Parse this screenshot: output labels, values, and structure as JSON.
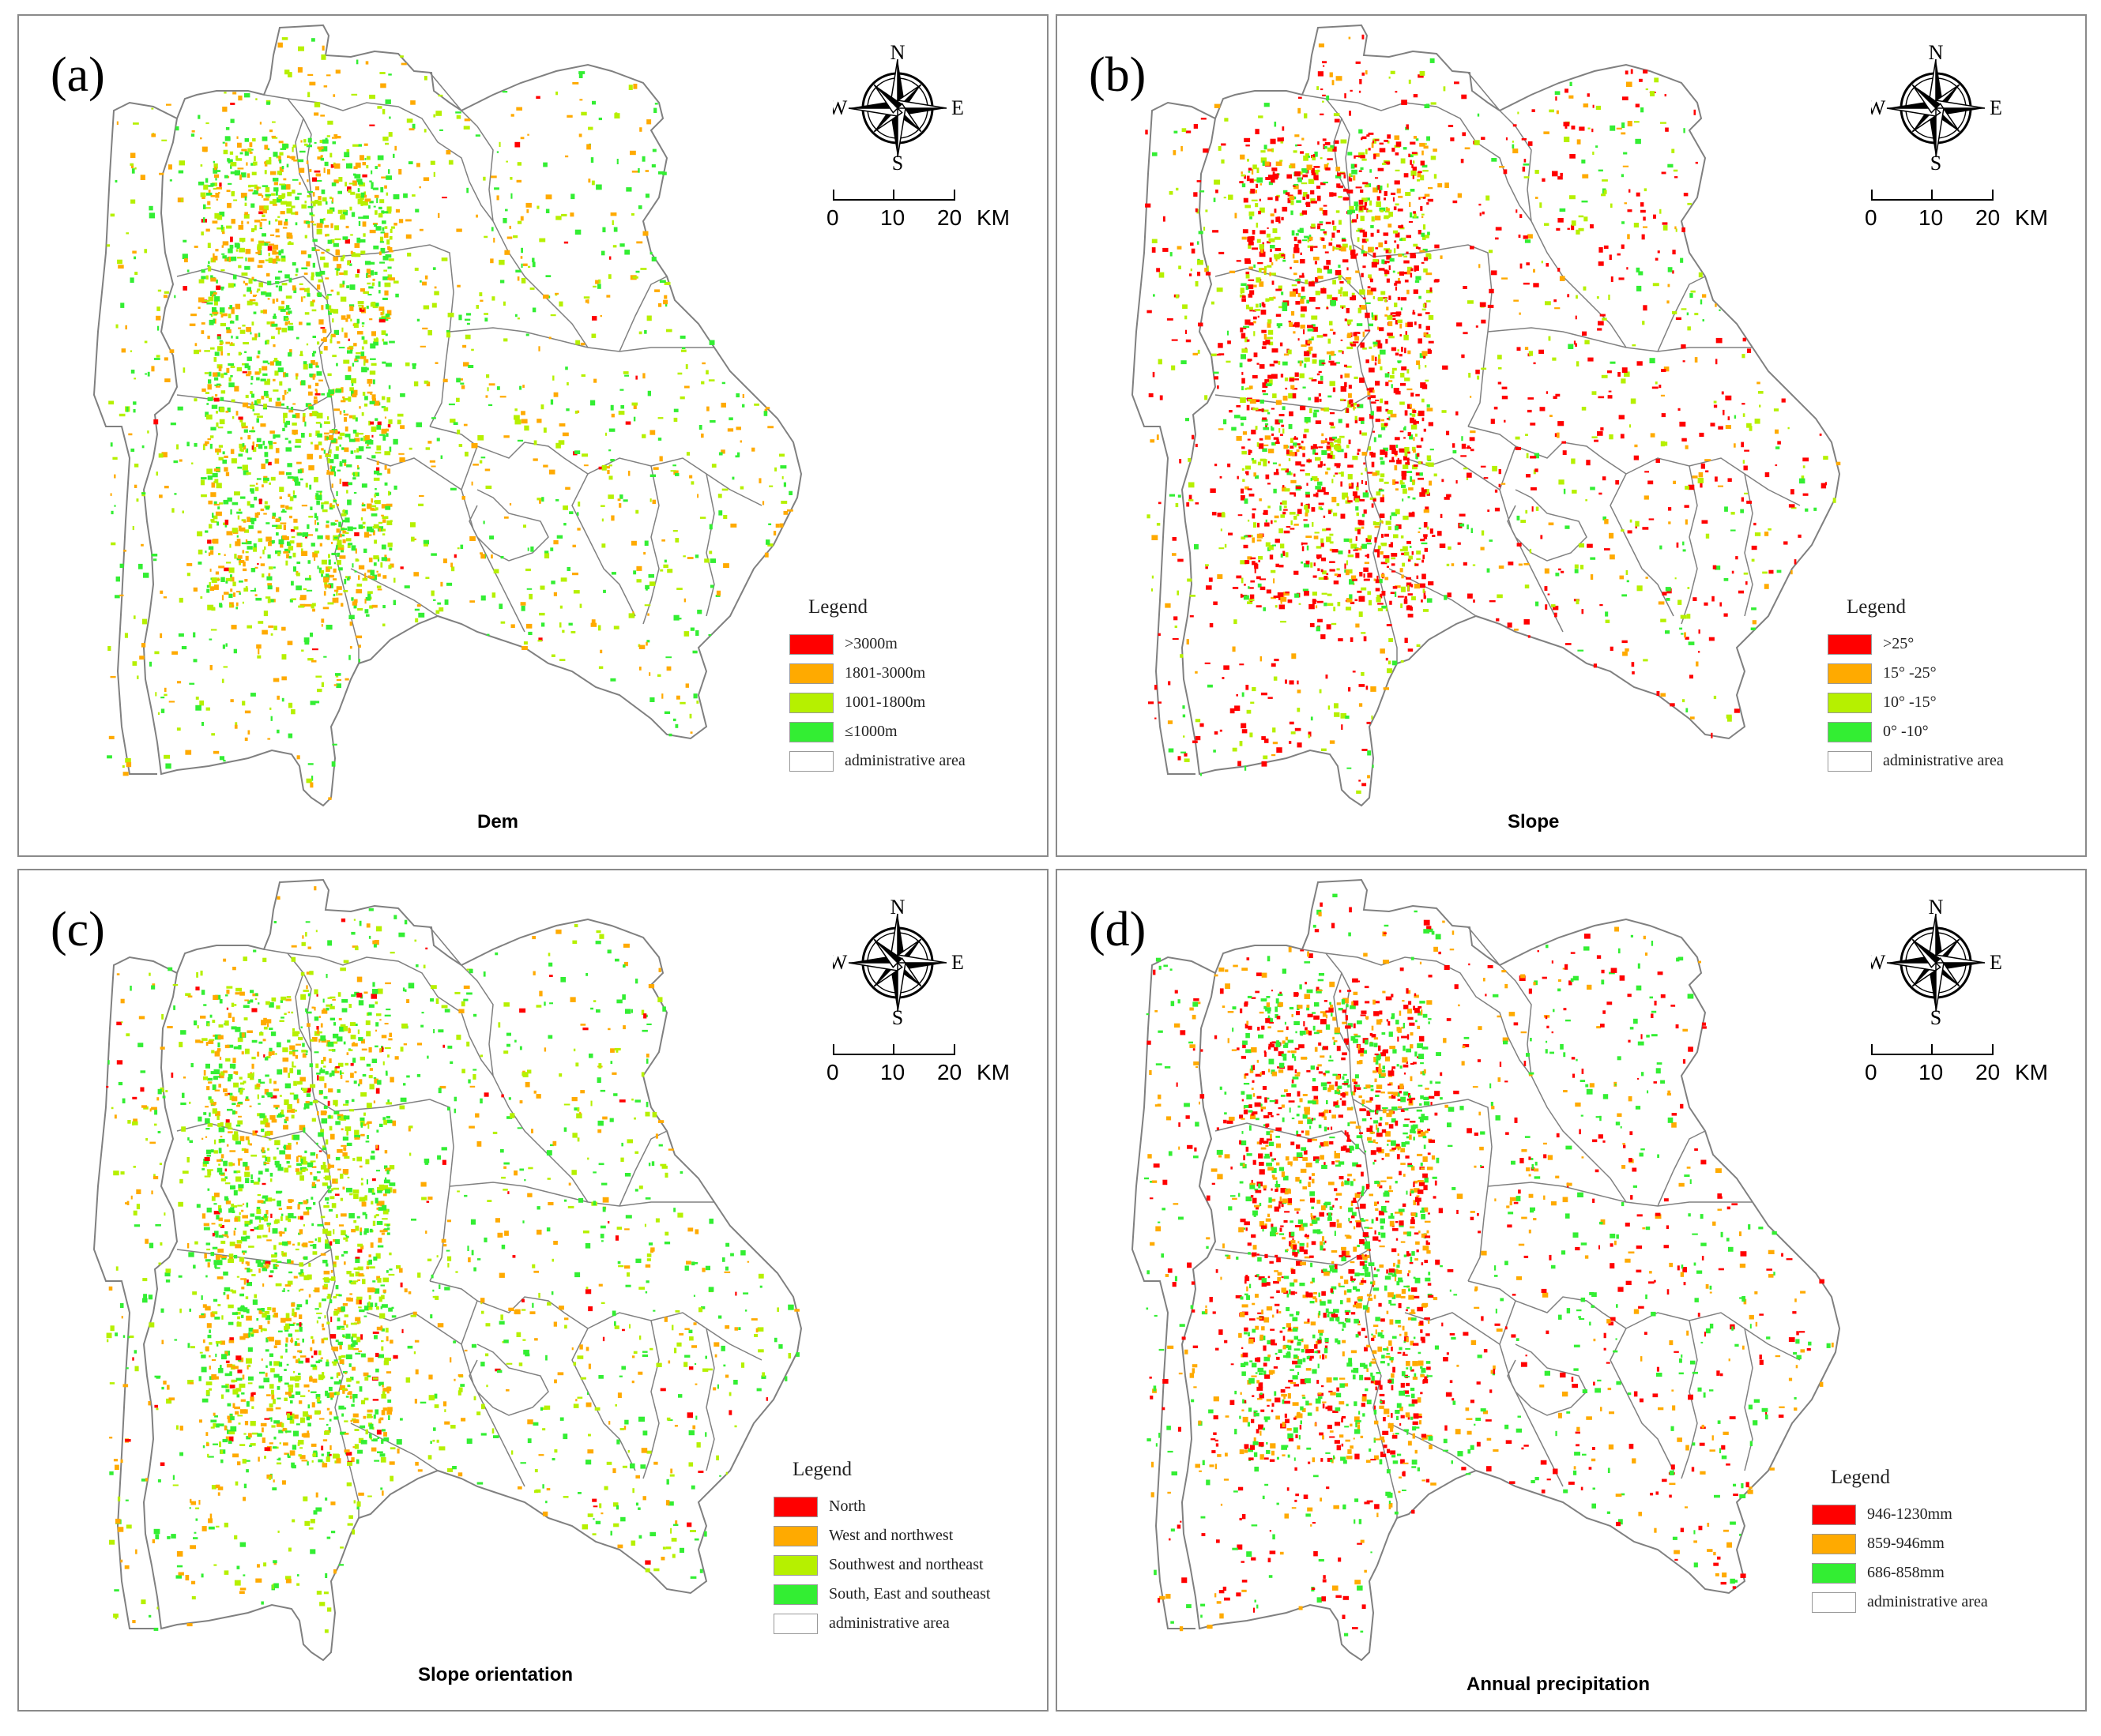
{
  "panels": [
    {
      "label": "(a)",
      "title": "Dem",
      "legend_title": "Legend",
      "legend": [
        {
          "label": ">3000m",
          "color": "#ff0000"
        },
        {
          "label": "1801-3000m",
          "color": "#ffaa00"
        },
        {
          "label": "1001-1800m",
          "color": "#b6f000"
        },
        {
          "label": "≤1000m",
          "color": "#33ee33"
        },
        {
          "label": "administrative area",
          "color": "#ffffff"
        }
      ],
      "class_weights": [
        0.02,
        0.33,
        0.32,
        0.33
      ]
    },
    {
      "label": "(b)",
      "title": "Slope",
      "legend_title": "Legend",
      "legend": [
        {
          "label": ">25°",
          "color": "#ff0000"
        },
        {
          "label": "15° -25°",
          "color": "#ffaa00"
        },
        {
          "label": "10° -15°",
          "color": "#b6f000"
        },
        {
          "label": "0° -10°",
          "color": "#33ee33"
        },
        {
          "label": "administrative area",
          "color": "#ffffff"
        }
      ],
      "class_weights": [
        0.5,
        0.12,
        0.25,
        0.13
      ]
    },
    {
      "label": "(c)",
      "title": "Slope orientation",
      "legend_title": "Legend",
      "legend": [
        {
          "label": "North",
          "color": "#ff0000"
        },
        {
          "label": "West and northwest",
          "color": "#ffaa00"
        },
        {
          "label": "Southwest and northeast",
          "color": "#b6f000"
        },
        {
          "label": "South, East and southeast",
          "color": "#33ee33"
        },
        {
          "label": "administrative area",
          "color": "#ffffff"
        }
      ],
      "class_weights": [
        0.04,
        0.28,
        0.33,
        0.35
      ]
    },
    {
      "label": "(d)",
      "title": "Annual precipitation",
      "legend_title": "Legend",
      "legend": [
        {
          "label": "946-1230mm",
          "color": "#ff0000"
        },
        {
          "label": "859-946mm",
          "color": "#ffaa00"
        },
        {
          "label": "686-858mm",
          "color": "#33ee33"
        },
        {
          "label": "administrative area",
          "color": "#ffffff"
        }
      ],
      "class_weights": [
        0.35,
        0.3,
        0.35
      ]
    }
  ],
  "compass": {
    "n": "N",
    "s": "S",
    "e": "E",
    "w": "W"
  },
  "scale": {
    "t0": "0",
    "t1": "10",
    "t2": "20",
    "unit": "KM"
  },
  "colors": {
    "boundary": "#808080",
    "frame": "#8a8a8a"
  }
}
